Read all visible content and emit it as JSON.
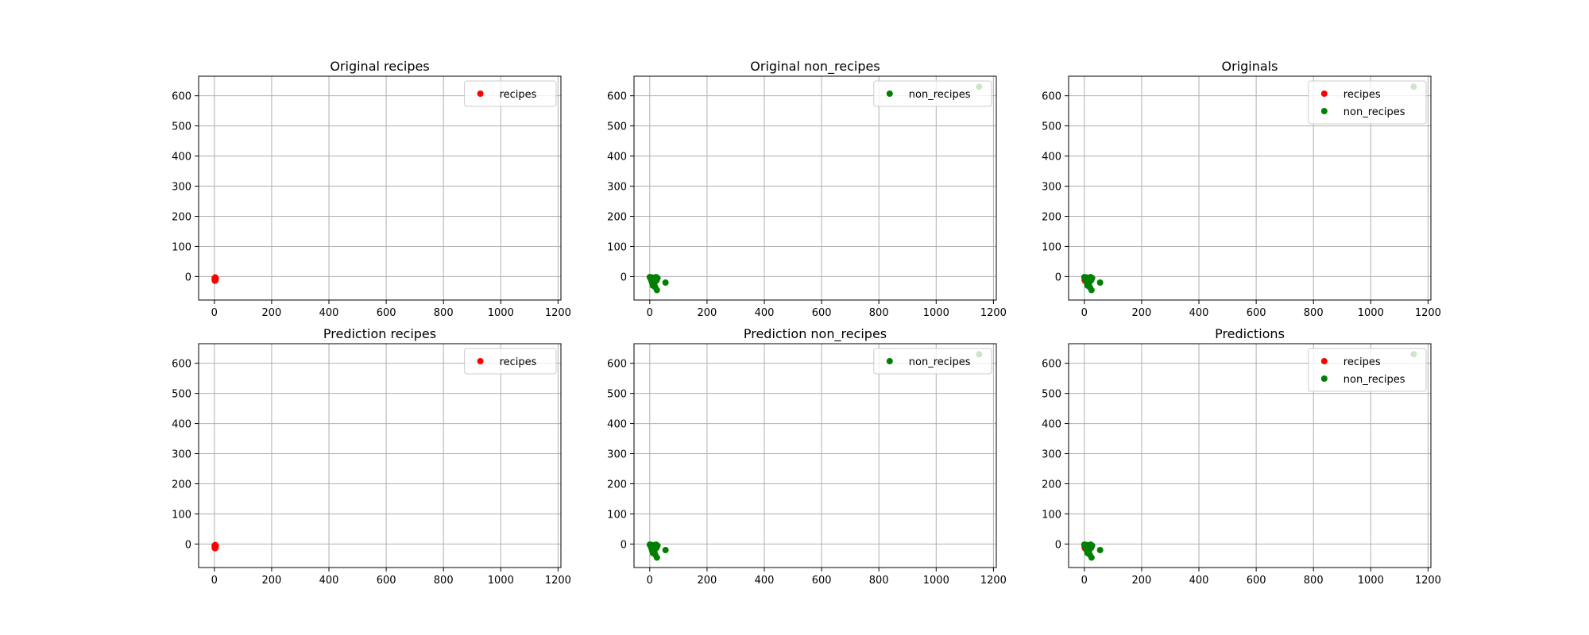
{
  "chart_data": [
    {
      "type": "scatter",
      "title": "Original recipes",
      "xlabel": "",
      "ylabel": "",
      "xlim": [
        -55,
        1210
      ],
      "ylim": [
        -78,
        665
      ],
      "xticks": [
        0,
        200,
        400,
        600,
        800,
        1000,
        1200
      ],
      "yticks": [
        0,
        100,
        200,
        300,
        400,
        500,
        600
      ],
      "grid": true,
      "legend": "top-right",
      "series": [
        {
          "name": "recipes",
          "color": "#ff0000",
          "x": [
            1,
            2,
            3,
            4,
            5,
            2,
            3,
            4,
            1,
            3
          ],
          "y": [
            -5,
            -8,
            -10,
            -12,
            -6,
            -14,
            -3,
            -9,
            -11,
            -7
          ]
        }
      ]
    },
    {
      "type": "scatter",
      "title": "Original non_recipes",
      "xlabel": "",
      "ylabel": "",
      "xlim": [
        -55,
        1210
      ],
      "ylim": [
        -78,
        665
      ],
      "xticks": [
        0,
        200,
        400,
        600,
        800,
        1000,
        1200
      ],
      "yticks": [
        0,
        100,
        200,
        300,
        400,
        500,
        600
      ],
      "grid": true,
      "legend": "top-right",
      "series": [
        {
          "name": "non_recipes",
          "color": "#008000",
          "x": [
            0,
            3,
            6,
            10,
            14,
            18,
            22,
            27,
            5,
            9,
            13,
            17,
            21,
            8,
            12,
            16,
            20,
            11,
            15,
            24,
            19,
            25,
            55,
            1150
          ],
          "y": [
            -2,
            -5,
            -3,
            -6,
            -4,
            -8,
            -2,
            -5,
            -12,
            -15,
            -10,
            -18,
            -13,
            -20,
            -25,
            -22,
            -16,
            -30,
            -28,
            -12,
            -35,
            -45,
            -20,
            630
          ]
        }
      ]
    },
    {
      "type": "scatter",
      "title": "Originals",
      "xlabel": "",
      "ylabel": "",
      "xlim": [
        -55,
        1210
      ],
      "ylim": [
        -78,
        665
      ],
      "xticks": [
        0,
        200,
        400,
        600,
        800,
        1000,
        1200
      ],
      "yticks": [
        0,
        100,
        200,
        300,
        400,
        500,
        600
      ],
      "grid": true,
      "legend": "top-right",
      "series": [
        {
          "name": "recipes",
          "color": "#ff0000",
          "x": [
            1,
            2,
            3,
            4,
            5,
            2,
            3,
            4,
            1,
            3
          ],
          "y": [
            -5,
            -8,
            -10,
            -12,
            -6,
            -14,
            -3,
            -9,
            -11,
            -7
          ]
        },
        {
          "name": "non_recipes",
          "color": "#008000",
          "x": [
            0,
            3,
            6,
            10,
            14,
            18,
            22,
            27,
            5,
            9,
            13,
            17,
            21,
            8,
            12,
            16,
            20,
            11,
            15,
            24,
            19,
            25,
            55,
            1150
          ],
          "y": [
            -2,
            -5,
            -3,
            -6,
            -4,
            -8,
            -2,
            -5,
            -12,
            -15,
            -10,
            -18,
            -13,
            -20,
            -25,
            -22,
            -16,
            -30,
            -28,
            -12,
            -35,
            -45,
            -20,
            630
          ]
        }
      ]
    },
    {
      "type": "scatter",
      "title": "Prediction recipes",
      "xlabel": "",
      "ylabel": "",
      "xlim": [
        -55,
        1210
      ],
      "ylim": [
        -78,
        665
      ],
      "xticks": [
        0,
        200,
        400,
        600,
        800,
        1000,
        1200
      ],
      "yticks": [
        0,
        100,
        200,
        300,
        400,
        500,
        600
      ],
      "grid": true,
      "legend": "top-right",
      "series": [
        {
          "name": "recipes",
          "color": "#ff0000",
          "x": [
            1,
            2,
            3,
            4,
            5,
            2,
            3,
            4,
            1,
            3
          ],
          "y": [
            -5,
            -8,
            -10,
            -12,
            -6,
            -14,
            -3,
            -9,
            -11,
            -7
          ]
        }
      ]
    },
    {
      "type": "scatter",
      "title": "Prediction non_recipes",
      "xlabel": "",
      "ylabel": "",
      "xlim": [
        -55,
        1210
      ],
      "ylim": [
        -78,
        665
      ],
      "xticks": [
        0,
        200,
        400,
        600,
        800,
        1000,
        1200
      ],
      "yticks": [
        0,
        100,
        200,
        300,
        400,
        500,
        600
      ],
      "grid": true,
      "legend": "top-right",
      "series": [
        {
          "name": "non_recipes",
          "color": "#008000",
          "x": [
            0,
            3,
            6,
            10,
            14,
            18,
            22,
            27,
            5,
            9,
            13,
            17,
            21,
            8,
            12,
            16,
            20,
            11,
            15,
            24,
            19,
            25,
            55,
            1150
          ],
          "y": [
            -2,
            -5,
            -3,
            -6,
            -4,
            -8,
            -2,
            -5,
            -12,
            -15,
            -10,
            -18,
            -13,
            -20,
            -25,
            -22,
            -16,
            -30,
            -28,
            -12,
            -35,
            -45,
            -20,
            630
          ]
        }
      ]
    },
    {
      "type": "scatter",
      "title": "Predictions",
      "xlabel": "",
      "ylabel": "",
      "xlim": [
        -55,
        1210
      ],
      "ylim": [
        -78,
        665
      ],
      "xticks": [
        0,
        200,
        400,
        600,
        800,
        1000,
        1200
      ],
      "yticks": [
        0,
        100,
        200,
        300,
        400,
        500,
        600
      ],
      "grid": true,
      "legend": "top-right",
      "series": [
        {
          "name": "recipes",
          "color": "#ff0000",
          "x": [
            1,
            2,
            3,
            4,
            5,
            2,
            3,
            4,
            1,
            3
          ],
          "y": [
            -5,
            -8,
            -10,
            -12,
            -6,
            -14,
            -3,
            -9,
            -11,
            -7
          ]
        },
        {
          "name": "non_recipes",
          "color": "#008000",
          "x": [
            0,
            3,
            6,
            10,
            14,
            18,
            22,
            27,
            5,
            9,
            13,
            17,
            21,
            8,
            12,
            16,
            20,
            11,
            15,
            24,
            19,
            25,
            55,
            1150
          ],
          "y": [
            -2,
            -5,
            -3,
            -6,
            -4,
            -8,
            -2,
            -5,
            -12,
            -15,
            -10,
            -18,
            -13,
            -20,
            -25,
            -22,
            -16,
            -30,
            -28,
            -12,
            -35,
            -45,
            -20,
            630
          ]
        }
      ]
    }
  ]
}
